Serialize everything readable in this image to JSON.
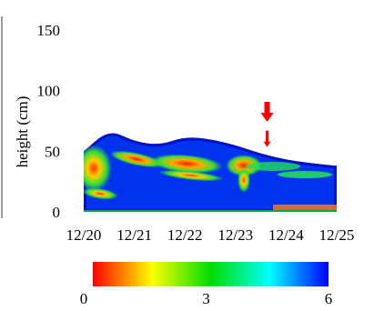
{
  "chart_data": {
    "type": "heatmap",
    "title": "",
    "xlabel": "",
    "ylabel": "height (cm)",
    "x_tick_labels": [
      "12/20",
      "12/21",
      "12/22",
      "12/23",
      "12/24",
      "12/25"
    ],
    "y_ticks": [
      0,
      50,
      100,
      150
    ],
    "ylim": [
      0,
      150
    ],
    "surface_profile_cm": {
      "x": [
        "12/20",
        "12/20 12:00",
        "12/21",
        "12/21 12:00",
        "12/22",
        "12/22 12:00",
        "12/23",
        "12/23 12:00",
        "12/24",
        "12/24 12:00",
        "12/25"
      ],
      "y": [
        50,
        68,
        58,
        55,
        62,
        60,
        55,
        48,
        43,
        40,
        38
      ]
    },
    "colorbar": {
      "ticks": [
        0,
        3,
        6
      ],
      "range": [
        0,
        6
      ],
      "colors": [
        "#ff0000",
        "#ffff00",
        "#00dd00",
        "#00ffff",
        "#0000ff"
      ]
    },
    "annotations": [
      {
        "type": "arrow",
        "color": "#ff0000",
        "x": "12/23 15:00",
        "size": "large"
      },
      {
        "type": "arrow",
        "color": "#ff0000",
        "x": "12/23 15:00",
        "y": 52,
        "size": "small"
      }
    ]
  }
}
